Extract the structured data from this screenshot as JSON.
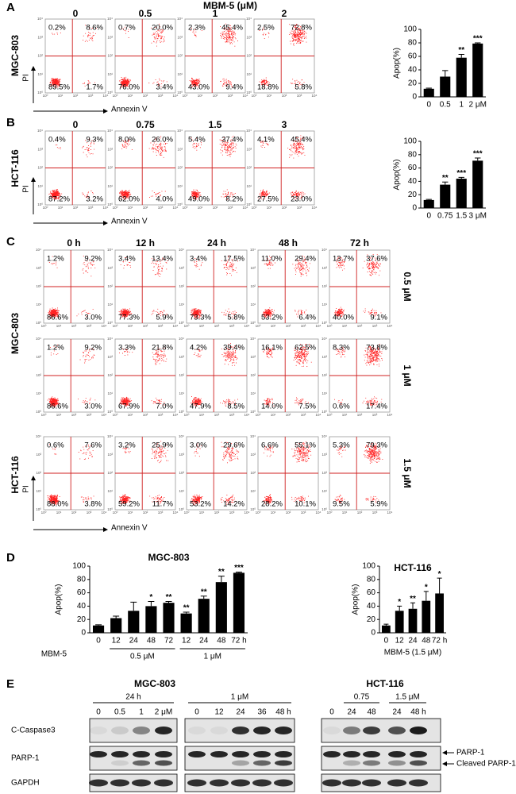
{
  "panel_labels": [
    "A",
    "B",
    "C",
    "D",
    "E"
  ],
  "flow_axis_ticks": [
    "10⁰",
    "10¹",
    "10²",
    "10³",
    "10⁴"
  ],
  "panel_a": {
    "title": "MBM-5 (μM)",
    "row_label": "MGC-803",
    "y_axis": "PI",
    "x_axis": "Annexin V",
    "plots": [
      {
        "header": "0",
        "quadrants": [
          "0.2%",
          "8.6%",
          "89.5%",
          "1.7%"
        ]
      },
      {
        "header": "0.5",
        "quadrants": [
          "0.7%",
          "20.0%",
          "76.0%",
          "3.4%"
        ]
      },
      {
        "header": "1",
        "quadrants": [
          "2.3%",
          "45.4%",
          "43.0%",
          "9.4%"
        ]
      },
      {
        "header": "2",
        "quadrants": [
          "2.5%",
          "72.8%",
          "18.8%",
          "5.8%"
        ]
      }
    ]
  },
  "panel_b": {
    "row_label": "HCT-116",
    "y_axis": "PI",
    "x_axis": "Annexin V",
    "plots": [
      {
        "header": "0",
        "quadrants": [
          "0.4%",
          "9.3%",
          "87.2%",
          "3.2%"
        ]
      },
      {
        "header": "0.75",
        "quadrants": [
          "8.0%",
          "26.0%",
          "62.0%",
          "4.0%"
        ]
      },
      {
        "header": "1.5",
        "quadrants": [
          "5.4%",
          "37.4%",
          "49.0%",
          "8.2%"
        ]
      },
      {
        "header": "3",
        "quadrants": [
          "4.1%",
          "45.4%",
          "27.5%",
          "23.0%"
        ]
      }
    ]
  },
  "panel_c": {
    "headers": [
      "0 h",
      "12 h",
      "24 h",
      "48 h",
      "72 h"
    ],
    "cell_lines": [
      "MGC-803",
      "HCT-116"
    ],
    "y_axis": "PI",
    "x_axis": "Annexin V",
    "rows": [
      {
        "dose": "0.5 μM",
        "quadrants": [
          [
            "1.2%",
            "9.2%",
            "86.6%",
            "3.0%"
          ],
          [
            "3.4%",
            "13.4%",
            "77.3%",
            "5.9%"
          ],
          [
            "3.4%",
            "17.5%",
            "73.3%",
            "5.8%"
          ],
          [
            "11.0%",
            "29.4%",
            "53.2%",
            "6.4%"
          ],
          [
            "13.7%",
            "37.6%",
            "40.0%",
            "9.1%"
          ]
        ]
      },
      {
        "dose": "1 μM",
        "quadrants": [
          [
            "1.2%",
            "9.2%",
            "86.6%",
            "3.0%"
          ],
          [
            "3.3%",
            "21.8%",
            "67.9%",
            "7.0%"
          ],
          [
            "4.2%",
            "39.4%",
            "47.9%",
            "8.5%"
          ],
          [
            "16.1%",
            "62.5%",
            "14.0%",
            "7.5%"
          ],
          [
            "8.3%",
            "73.8%",
            "0.6%",
            "17.4%"
          ]
        ]
      },
      {
        "dose": "1.5 μM",
        "quadrants": [
          [
            "0.6%",
            "7.6%",
            "88.0%",
            "3.8%"
          ],
          [
            "3.2%",
            "25.9%",
            "59.2%",
            "11.7%"
          ],
          [
            "3.0%",
            "29.6%",
            "53.2%",
            "14.2%"
          ],
          [
            "6.6%",
            "55.1%",
            "28.2%",
            "10.1%"
          ],
          [
            "5.3%",
            "79.3%",
            "9.5%",
            "5.9%"
          ]
        ]
      }
    ]
  },
  "panel_e": {
    "cell_lines": [
      "MGC-803",
      "HCT-116"
    ],
    "blots": [
      {
        "header": "24 h",
        "lanes": [
          "0",
          "0.5",
          "1",
          "2 μM"
        ]
      },
      {
        "header": "1 μM",
        "lanes": [
          "0",
          "12",
          "24",
          "36",
          "48 h"
        ]
      },
      {
        "subheaders": [
          "0.75",
          "1.5 μM"
        ],
        "lanes": [
          "0",
          "24",
          "48",
          "24",
          "48 h"
        ]
      }
    ],
    "rows": [
      "C-Caspase3",
      "PARP-1",
      "GAPDH"
    ],
    "annotations": [
      "PARP-1",
      "Cleaved PARP-1"
    ]
  },
  "chart_data": [
    {
      "type": "bar",
      "ylabel": "Apop(%)",
      "categories": [
        "0",
        "0.5",
        "1",
        "2 μM"
      ],
      "values": [
        12,
        30,
        58,
        79
      ],
      "errors": [
        1,
        9,
        5,
        1
      ],
      "annotations": [
        null,
        null,
        "**",
        "***"
      ],
      "color": "#000000",
      "ylim": [
        0,
        100
      ],
      "yticks": [
        0,
        20,
        40,
        60,
        80,
        100
      ]
    },
    {
      "type": "bar",
      "ylabel": "Apop(%)",
      "categories": [
        "0",
        "0.75",
        "1.5",
        "3 μM"
      ],
      "values": [
        12,
        35,
        44,
        71
      ],
      "errors": [
        1,
        4,
        2,
        4
      ],
      "annotations": [
        null,
        "**",
        "***",
        "***"
      ],
      "color": "#000000",
      "ylim": [
        0,
        100
      ],
      "yticks": [
        0,
        20,
        40,
        60,
        80,
        100
      ]
    },
    {
      "type": "bar",
      "title": "MGC-803",
      "ylabel": "Apop(%)",
      "categories": [
        "0",
        "12",
        "24",
        "48",
        "72",
        "12",
        "24",
        "48",
        "72 h"
      ],
      "group_labels": [
        "MBM-5",
        "0.5 μM",
        "1 μM"
      ],
      "values": [
        11,
        22,
        33,
        40,
        45,
        29,
        51,
        76,
        90
      ],
      "errors": [
        1,
        3,
        13,
        7,
        2,
        2,
        4,
        9,
        1
      ],
      "annotations": [
        null,
        null,
        null,
        "*",
        "**",
        "**",
        "**",
        "**",
        "***"
      ],
      "color": "#000000",
      "ylim": [
        0,
        100
      ],
      "yticks": [
        0,
        20,
        40,
        60,
        80,
        100
      ]
    },
    {
      "type": "bar",
      "title": "HCT-116",
      "ylabel": "Apop(%)",
      "xlabel": "MBM-5 (1.5 μM)",
      "categories": [
        "0",
        "12",
        "24",
        "48",
        "72 h"
      ],
      "values": [
        11,
        33,
        36,
        48,
        59
      ],
      "errors": [
        2,
        7,
        9,
        14,
        23
      ],
      "annotations": [
        null,
        "*",
        "**",
        "*",
        "*"
      ],
      "color": "#000000",
      "ylim": [
        0,
        100
      ],
      "yticks": [
        0,
        20,
        40,
        60,
        80,
        100
      ]
    }
  ]
}
